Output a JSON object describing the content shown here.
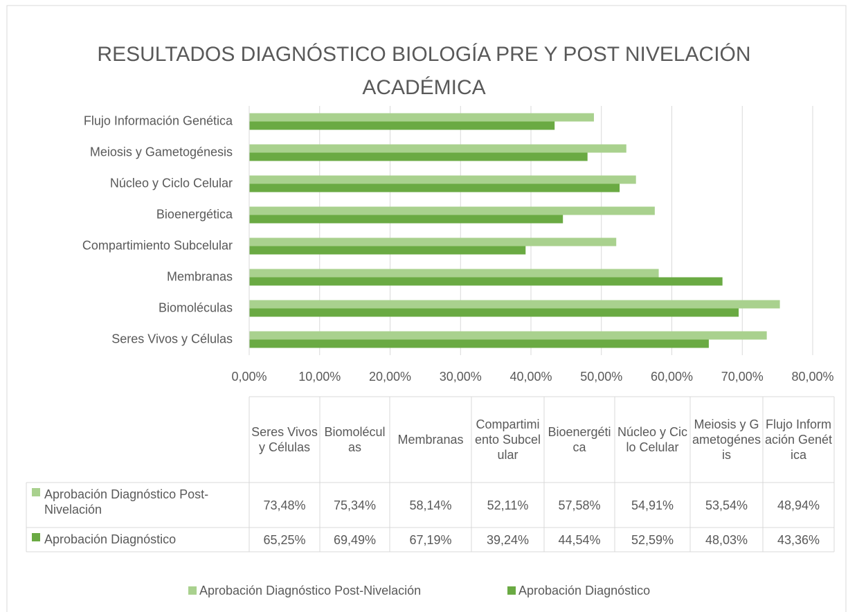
{
  "chart_data": {
    "type": "hbar",
    "title": "RESULTADOS DIAGNÓSTICO BIOLOGÍA PRE Y POST NIVELACIÓN ACADÉMICA",
    "categories": [
      "Seres Vivos y Células",
      "Biomoléculas",
      "Membranas",
      "Compartimiento Subcelular",
      "Bioenergética",
      "Núcleo y Ciclo Celular",
      "Meiosis y Gametogénesis",
      "Flujo Información Genética"
    ],
    "series": [
      {
        "name": "Aprobación Diagnóstico Post-Nivelación",
        "color": "#a9d18e",
        "values": [
          73.48,
          75.34,
          58.14,
          52.11,
          57.58,
          54.91,
          53.54,
          48.94
        ],
        "value_labels": [
          "73,48%",
          "75,34%",
          "58,14%",
          "52,11%",
          "57,58%",
          "54,91%",
          "53,54%",
          "48,94%"
        ]
      },
      {
        "name": "Aprobación Diagnóstico",
        "color": "#6aaa43",
        "values": [
          65.25,
          69.49,
          67.19,
          39.24,
          44.54,
          52.59,
          48.03,
          43.36
        ],
        "value_labels": [
          "65,25%",
          "69,49%",
          "67,19%",
          "39,24%",
          "44,54%",
          "52,59%",
          "48,03%",
          "43,36%"
        ]
      }
    ],
    "xlim": [
      0,
      80
    ],
    "xticks": [
      {
        "value": 0,
        "label": "0,00%"
      },
      {
        "value": 10,
        "label": "10,00%"
      },
      {
        "value": 20,
        "label": "20,00%"
      },
      {
        "value": 30,
        "label": "30,00%"
      },
      {
        "value": 40,
        "label": "40,00%"
      },
      {
        "value": 50,
        "label": "50,00%"
      },
      {
        "value": 60,
        "label": "60,00%"
      },
      {
        "value": 70,
        "label": "70,00%"
      },
      {
        "value": 80,
        "label": "80,00%"
      }
    ],
    "grid": true,
    "legend": "bottom",
    "data_table": true
  }
}
